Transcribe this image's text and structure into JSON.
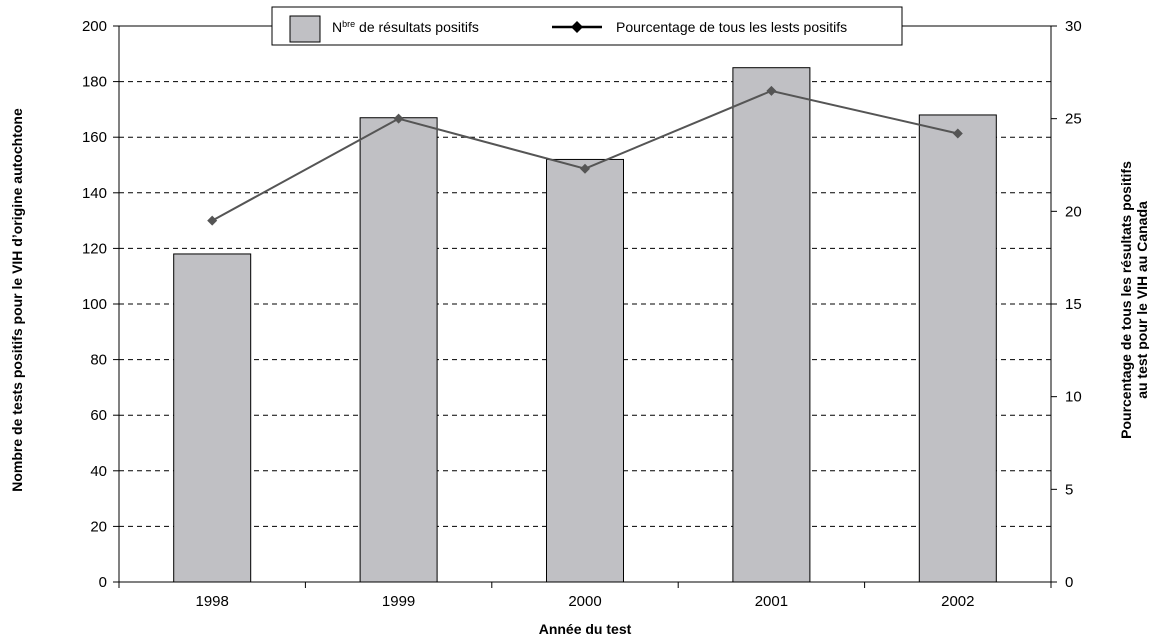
{
  "chart_data": {
    "type": "bar",
    "categories": [
      "1998",
      "1999",
      "2000",
      "2001",
      "2002"
    ],
    "series": [
      {
        "name": "Nbre de résultats positifs",
        "chart_type": "bar",
        "axis": "left",
        "values": [
          118,
          167,
          152,
          185,
          168
        ],
        "color": "#c0c0c4"
      },
      {
        "name": "Pourcentage de tous les lests positifs",
        "chart_type": "line",
        "axis": "right",
        "values": [
          19.5,
          25.0,
          22.3,
          26.5,
          24.2
        ],
        "color": "#555555",
        "marker": "diamond"
      }
    ],
    "xlabel": "Année du test",
    "ylabel": "Nombre de tests positifs pour le VIH d’origine autochtone",
    "y2label_line1": "Pourcentage de tous les résultats positifs",
    "y2label_line2": "au test pour le VIH au Canada",
    "ylim": [
      0,
      200
    ],
    "y2lim": [
      0,
      30
    ],
    "yticks": [
      0,
      20,
      40,
      60,
      80,
      100,
      120,
      140,
      160,
      180,
      200
    ],
    "y2ticks": [
      0,
      5,
      10,
      15,
      20,
      25,
      30
    ],
    "grid": "horizontal-dashed",
    "legend": {
      "placement": "top-center",
      "bar_label_main": "N",
      "bar_label_sup": "bre",
      "bar_label_rest": " de résultats positifs",
      "line_label": "Pourcentage de tous les lests positifs"
    }
  }
}
